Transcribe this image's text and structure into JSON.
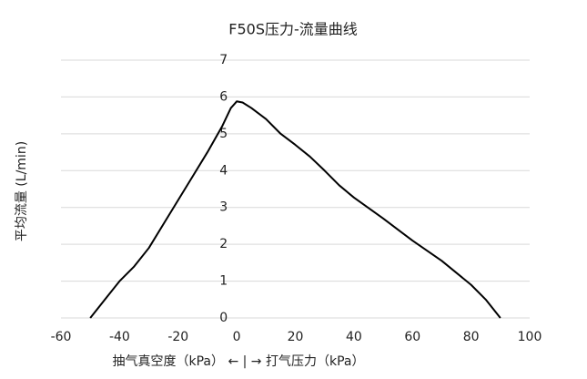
{
  "chart_data": {
    "type": "line",
    "title": "F50S压力-流量曲线",
    "y_label": "平均流量 (L/min)",
    "x_label": "抽气真空度（kPa） ← | → 打气压力（kPa）",
    "x": [
      -50,
      -45,
      -40,
      -35,
      -30,
      -25,
      -20,
      -15,
      -10,
      -5,
      -2,
      0,
      2,
      5,
      10,
      15,
      20,
      25,
      30,
      35,
      40,
      50,
      60,
      70,
      80,
      85,
      90
    ],
    "values": [
      0,
      0.5,
      1.0,
      1.4,
      1.9,
      2.55,
      3.2,
      3.85,
      4.5,
      5.2,
      5.7,
      5.88,
      5.85,
      5.7,
      5.4,
      5.0,
      4.7,
      4.38,
      4.0,
      3.6,
      3.27,
      2.7,
      2.1,
      1.55,
      0.9,
      0.5,
      0
    ],
    "color": "#000000",
    "xlim": [
      -60,
      100
    ],
    "xticks": [
      -60,
      -40,
      -20,
      0,
      20,
      40,
      60,
      80,
      100
    ],
    "ylim": [
      0,
      7
    ],
    "yticks": [
      0,
      1,
      2,
      3,
      4,
      5,
      6,
      7
    ],
    "grid": true
  }
}
